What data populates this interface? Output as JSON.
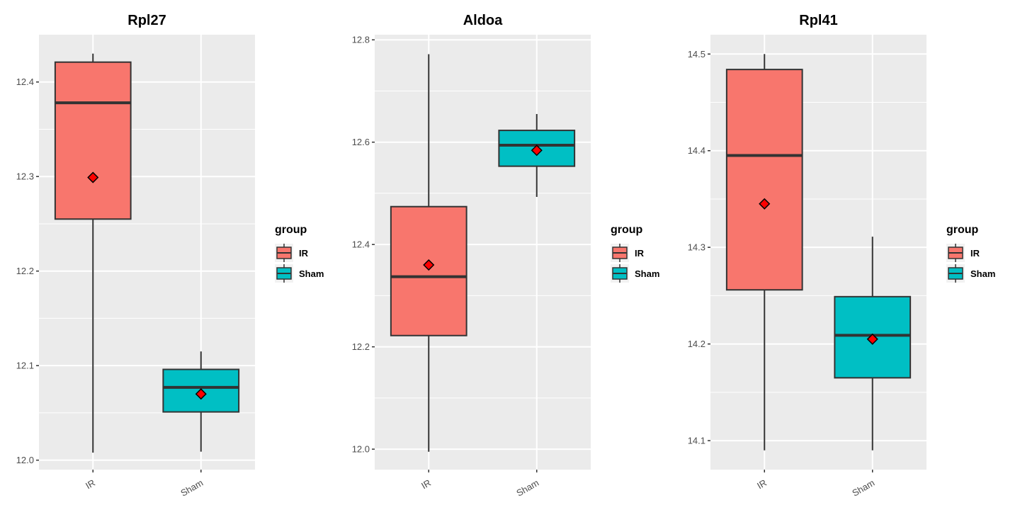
{
  "legend": {
    "title": "group",
    "items": [
      {
        "label": "IR",
        "color": "#F8766D"
      },
      {
        "label": "Sham",
        "color": "#00BFC4"
      }
    ]
  },
  "colors": {
    "panel_bg": "#EBEBEB",
    "grid": "#FFFFFF",
    "box_stroke": "#333333",
    "mean_marker": "#FF0000"
  },
  "chart_data": [
    {
      "type": "boxplot",
      "title": "Rpl27",
      "categories": [
        "IR",
        "Sham"
      ],
      "ylim": [
        11.99,
        12.45
      ],
      "yticks": [
        12.0,
        12.1,
        12.2,
        12.3,
        12.4
      ],
      "ytick_labels": [
        "12.0",
        "12.1",
        "12.2",
        "12.3",
        "12.4"
      ],
      "boxes": [
        {
          "group": "IR",
          "min": 12.008,
          "q1": 12.255,
          "median": 12.378,
          "q3": 12.421,
          "max": 12.43,
          "mean": 12.299
        },
        {
          "group": "Sham",
          "min": 12.009,
          "q1": 12.051,
          "median": 12.077,
          "q3": 12.096,
          "max": 12.115,
          "mean": 12.07
        }
      ]
    },
    {
      "type": "boxplot",
      "title": "Aldoa",
      "categories": [
        "IR",
        "Sham"
      ],
      "ylim": [
        11.96,
        12.81
      ],
      "yticks": [
        12.0,
        12.2,
        12.4,
        12.6,
        12.8
      ],
      "ytick_labels": [
        "12.0",
        "12.2",
        "12.4",
        "12.6",
        "12.8"
      ],
      "boxes": [
        {
          "group": "IR",
          "min": 11.995,
          "q1": 12.222,
          "median": 12.337,
          "q3": 12.474,
          "max": 12.772,
          "mean": 12.36
        },
        {
          "group": "Sham",
          "min": 12.493,
          "q1": 12.553,
          "median": 12.594,
          "q3": 12.623,
          "max": 12.655,
          "mean": 12.584
        }
      ]
    },
    {
      "type": "boxplot",
      "title": "Rpl41",
      "categories": [
        "IR",
        "Sham"
      ],
      "ylim": [
        14.07,
        14.52
      ],
      "yticks": [
        14.1,
        14.2,
        14.3,
        14.4,
        14.5
      ],
      "ytick_labels": [
        "14.1",
        "14.2",
        "14.3",
        "14.4",
        "14.5"
      ],
      "boxes": [
        {
          "group": "IR",
          "min": 14.09,
          "q1": 14.256,
          "median": 14.395,
          "q3": 14.484,
          "max": 14.5,
          "mean": 14.345
        },
        {
          "group": "Sham",
          "min": 14.09,
          "q1": 14.165,
          "median": 14.209,
          "q3": 14.249,
          "max": 14.311,
          "mean": 14.205
        }
      ]
    }
  ]
}
